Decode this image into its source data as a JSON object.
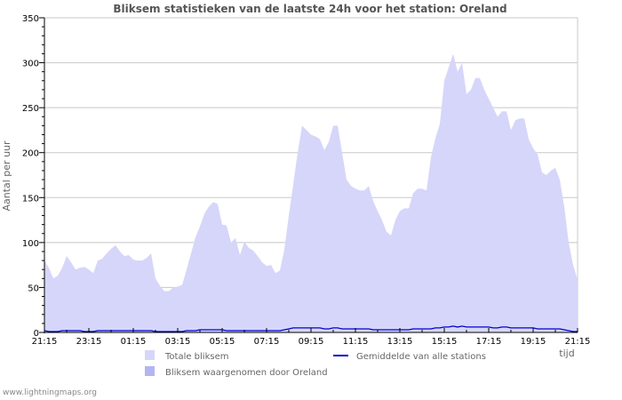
{
  "footer": "www.lightningmaps.org",
  "colors": {
    "total_fill": "#d6d6fa",
    "station_fill": "#b4b4f4",
    "avg_line": "#0000cc",
    "grid": "#c8c8c8",
    "axis": "#000000"
  },
  "chart_data": {
    "type": "area",
    "title": "Bliksem statistieken van de laatste 24h voor het station: Oreland",
    "xlabel": "tijd",
    "ylabel": "Aantal per uur",
    "ylim": [
      0,
      350
    ],
    "yticks": [
      0,
      50,
      100,
      150,
      200,
      250,
      300,
      350
    ],
    "xticks": [
      "21:15",
      "23:15",
      "01:15",
      "03:15",
      "05:15",
      "07:15",
      "09:15",
      "11:15",
      "13:15",
      "15:15",
      "17:15",
      "19:15",
      "21:15"
    ],
    "grid": true,
    "legend_position": "bottom",
    "legend": [
      {
        "label": "Totale bliksem",
        "kind": "area"
      },
      {
        "label": "Bliksem waargenomen door Oreland",
        "kind": "area"
      },
      {
        "label": "Gemiddelde van alle stations",
        "kind": "line"
      }
    ],
    "x_hours_offset": [
      0,
      0.2,
      0.4,
      0.6,
      0.8,
      1.0,
      1.2,
      1.4,
      1.6,
      1.8,
      2.0,
      2.2,
      2.4,
      2.6,
      2.8,
      3.0,
      3.2,
      3.4,
      3.6,
      3.8,
      4.0,
      4.2,
      4.4,
      4.6,
      4.8,
      5.0,
      5.2,
      5.4,
      5.6,
      5.8,
      6.0,
      6.2,
      6.4,
      6.6,
      6.8,
      7.0,
      7.2,
      7.4,
      7.6,
      7.8,
      8.0,
      8.2,
      8.4,
      8.6,
      8.8,
      9.0,
      9.2,
      9.4,
      9.6,
      9.8,
      10.0,
      10.2,
      10.4,
      10.6,
      10.8,
      11.0,
      11.2,
      11.4,
      11.6,
      11.8,
      12.0,
      12.2,
      12.4,
      12.6,
      12.8,
      13.0,
      13.2,
      13.4,
      13.6,
      13.8,
      14.0,
      14.2,
      14.4,
      14.6,
      14.8,
      15.0,
      15.2,
      15.4,
      15.6,
      15.8,
      16.0,
      16.2,
      16.4,
      16.6,
      16.8,
      17.0,
      17.2,
      17.4,
      17.6,
      17.8,
      18.0,
      18.2,
      18.4,
      18.6,
      18.8,
      19.0,
      19.2,
      19.4,
      19.6,
      19.8,
      20.0,
      20.2,
      20.4,
      20.6,
      20.8,
      21.0,
      21.2,
      21.4,
      21.6,
      21.8,
      22.0,
      22.2,
      22.4,
      22.6,
      22.8,
      23.0,
      23.2,
      23.4,
      23.6,
      23.8,
      24.0
    ],
    "series": [
      {
        "name": "Totale bliksem",
        "values": [
          80,
          72,
          60,
          63,
          72,
          85,
          78,
          70,
          72,
          73,
          70,
          66,
          80,
          82,
          88,
          93,
          97,
          90,
          85,
          86,
          81,
          80,
          80,
          83,
          88,
          60,
          52,
          46,
          46,
          50,
          51,
          53,
          70,
          88,
          106,
          118,
          132,
          140,
          145,
          143,
          120,
          119,
          100,
          105,
          86,
          101,
          94,
          91,
          85,
          78,
          74,
          75,
          66,
          69,
          92,
          130,
          165,
          200,
          230,
          225,
          220,
          218,
          215,
          203,
          212,
          230,
          230,
          200,
          170,
          163,
          160,
          158,
          158,
          163,
          146,
          135,
          125,
          112,
          108,
          125,
          135,
          138,
          138,
          155,
          160,
          160,
          158,
          195,
          216,
          232,
          280,
          295,
          310,
          290,
          300,
          265,
          270,
          283,
          283,
          270,
          260,
          250,
          240,
          246,
          246,
          225,
          236,
          238,
          238,
          215,
          205,
          198,
          178,
          175,
          180,
          183,
          170,
          140,
          100,
          75,
          58
        ]
      },
      {
        "name": "Bliksem waargenomen door Oreland",
        "values": [
          0,
          0,
          0,
          0,
          0,
          0,
          0,
          0,
          0,
          0,
          0,
          0,
          0,
          0,
          0,
          0,
          0,
          0,
          0,
          0,
          0,
          0,
          0,
          0,
          0,
          0,
          0,
          0,
          0,
          0,
          0,
          0,
          0,
          0,
          0,
          0,
          0,
          0,
          0,
          0,
          0,
          0,
          0,
          0,
          0,
          0,
          0,
          0,
          0,
          0,
          0,
          0,
          0,
          0,
          0,
          0,
          0,
          0,
          0,
          0,
          0,
          0,
          0,
          0,
          0,
          0,
          0,
          0,
          0,
          0,
          0,
          0,
          0,
          0,
          0,
          0,
          0,
          0,
          0,
          0,
          0,
          0,
          0,
          0,
          0,
          0,
          0,
          0,
          0,
          0,
          0,
          0,
          0,
          0,
          0,
          0,
          0,
          0,
          0,
          0,
          0,
          0,
          0,
          0,
          0,
          0,
          0,
          0,
          0,
          0,
          0,
          0,
          0,
          0,
          0,
          0,
          0,
          0,
          0,
          0,
          0
        ]
      },
      {
        "name": "Gemiddelde van alle stations",
        "values": [
          2,
          1,
          1,
          1,
          2,
          2,
          2,
          2,
          2,
          1,
          1,
          1,
          2,
          2,
          2,
          2,
          2,
          2,
          2,
          2,
          2,
          2,
          2,
          2,
          2,
          1,
          1,
          1,
          1,
          1,
          1,
          1,
          2,
          2,
          2,
          3,
          3,
          3,
          3,
          3,
          3,
          2,
          2,
          2,
          2,
          2,
          2,
          2,
          2,
          2,
          2,
          2,
          2,
          2,
          3,
          4,
          5,
          5,
          5,
          5,
          5,
          5,
          5,
          4,
          4,
          5,
          5,
          4,
          4,
          4,
          4,
          4,
          4,
          4,
          3,
          3,
          3,
          3,
          3,
          3,
          3,
          3,
          3,
          4,
          4,
          4,
          4,
          4,
          5,
          5,
          6,
          6,
          7,
          6,
          7,
          6,
          6,
          6,
          6,
          6,
          6,
          5,
          5,
          6,
          6,
          5,
          5,
          5,
          5,
          5,
          5,
          4,
          4,
          4,
          4,
          4,
          4,
          3,
          2,
          1,
          1
        ]
      }
    ]
  }
}
